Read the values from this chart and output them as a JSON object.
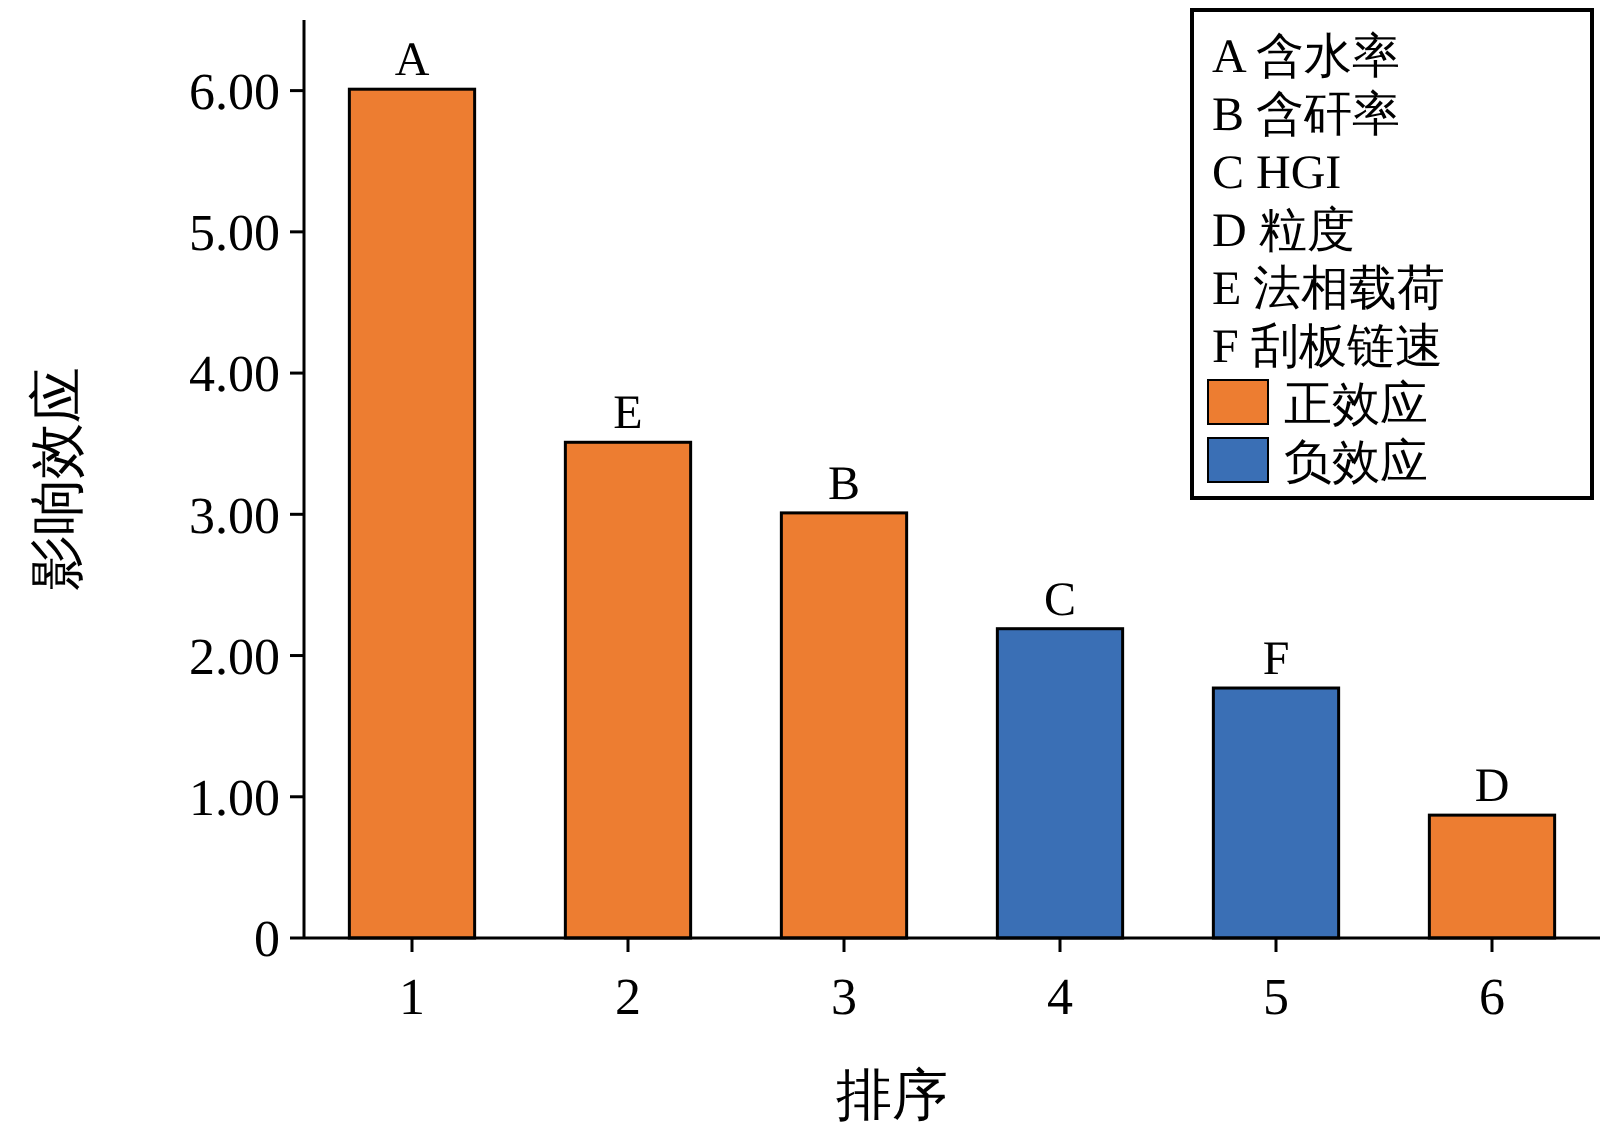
{
  "chart_data": {
    "type": "bar",
    "xlabel": "排序",
    "ylabel": "影响效应",
    "categories": [
      "1",
      "2",
      "3",
      "4",
      "5",
      "6"
    ],
    "series": [
      {
        "name": "正效应",
        "color": "#ed7d31",
        "values": [
          6.01,
          3.51,
          3.01,
          null,
          null,
          0.87
        ],
        "value_labels": [
          "A",
          "E",
          "B",
          null,
          null,
          "D"
        ]
      },
      {
        "name": "负效应",
        "color": "#3a6fb5",
        "values": [
          null,
          null,
          null,
          2.19,
          1.77,
          null
        ],
        "value_labels": [
          null,
          null,
          null,
          "C",
          "F",
          null
        ]
      }
    ],
    "ylim": [
      0,
      6.5
    ],
    "yticks": [
      {
        "value": 0,
        "label": "0"
      },
      {
        "value": 1,
        "label": "1.00"
      },
      {
        "value": 2,
        "label": "2.00"
      },
      {
        "value": 3,
        "label": "3.00"
      },
      {
        "value": 4,
        "label": "4.00"
      },
      {
        "value": 5,
        "label": "5.00"
      },
      {
        "value": 6,
        "label": "6.00"
      }
    ],
    "grid": false,
    "legend": "top right",
    "annotations": [
      "A 含水率",
      "B 含矸率",
      "C HGI",
      "D 粒度",
      "E 法相载荷",
      "F 刮板链速"
    ]
  }
}
